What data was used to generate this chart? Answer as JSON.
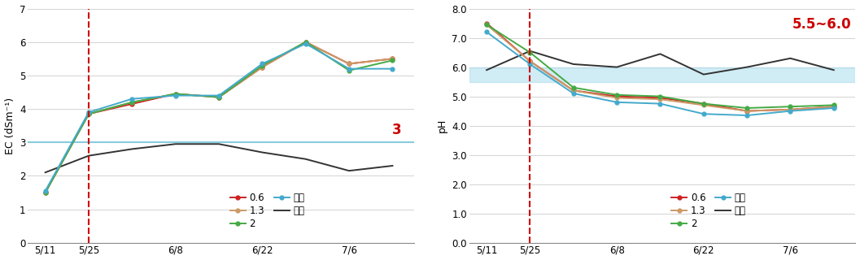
{
  "x_positions": [
    0,
    1,
    2,
    3,
    4,
    5,
    6,
    7,
    8
  ],
  "x_tick_labels": [
    "5/11",
    "5/25",
    "6/8",
    "6/22",
    "7/6"
  ],
  "x_tick_positions": [
    0,
    1,
    3,
    5,
    7
  ],
  "vline_x": 1,
  "ec": {
    "line_06": [
      1.5,
      3.85,
      4.15,
      4.45,
      4.35,
      5.25,
      6.0,
      5.35,
      5.5
    ],
    "line_13": [
      1.5,
      3.85,
      4.2,
      4.45,
      4.35,
      5.25,
      6.0,
      5.35,
      5.5
    ],
    "line_2": [
      1.5,
      3.85,
      4.2,
      4.45,
      4.35,
      5.3,
      6.0,
      5.15,
      5.45
    ],
    "line_jeon": [
      1.55,
      3.9,
      4.3,
      4.4,
      4.4,
      5.35,
      5.95,
      5.2,
      5.2
    ],
    "line_gub": [
      2.1,
      2.6,
      2.8,
      2.95,
      2.95,
      2.7,
      2.5,
      2.15,
      2.3
    ],
    "hline_y": 3.0,
    "hline_label": "3",
    "ylabel": "EC (dSm⁻¹)",
    "ylim": [
      0,
      7
    ],
    "yticks": [
      0,
      1,
      2,
      3,
      4,
      5,
      6,
      7
    ]
  },
  "ph": {
    "line_06": [
      7.5,
      6.2,
      5.2,
      5.0,
      4.95,
      4.75,
      4.5,
      4.55,
      4.65
    ],
    "line_13": [
      7.45,
      6.2,
      5.2,
      4.95,
      4.9,
      4.7,
      4.5,
      4.55,
      4.65
    ],
    "line_2": [
      7.45,
      6.5,
      5.3,
      5.05,
      5.0,
      4.75,
      4.6,
      4.65,
      4.7
    ],
    "line_jeon": [
      7.2,
      6.1,
      5.1,
      4.8,
      4.75,
      4.4,
      4.35,
      4.5,
      4.6
    ],
    "line_gub": [
      5.9,
      6.55,
      6.1,
      6.0,
      6.45,
      5.75,
      6.0,
      6.3,
      5.9
    ],
    "band_lo": 5.5,
    "band_hi": 6.0,
    "band_label": "5.5~6.0",
    "ylabel": "pH",
    "ylim": [
      0,
      8.0
    ],
    "yticks": [
      0.0,
      1.0,
      2.0,
      3.0,
      4.0,
      5.0,
      6.0,
      7.0,
      8.0
    ]
  },
  "colors": {
    "06": "#cc2222",
    "13": "#cc9966",
    "2": "#44aa44",
    "jeon": "#44aacc",
    "gub": "#333333"
  },
  "vline_color": "#cc0000",
  "hline_color": "#88ccdd",
  "band_color": "#aaddee",
  "annotation_color": "#cc0000"
}
